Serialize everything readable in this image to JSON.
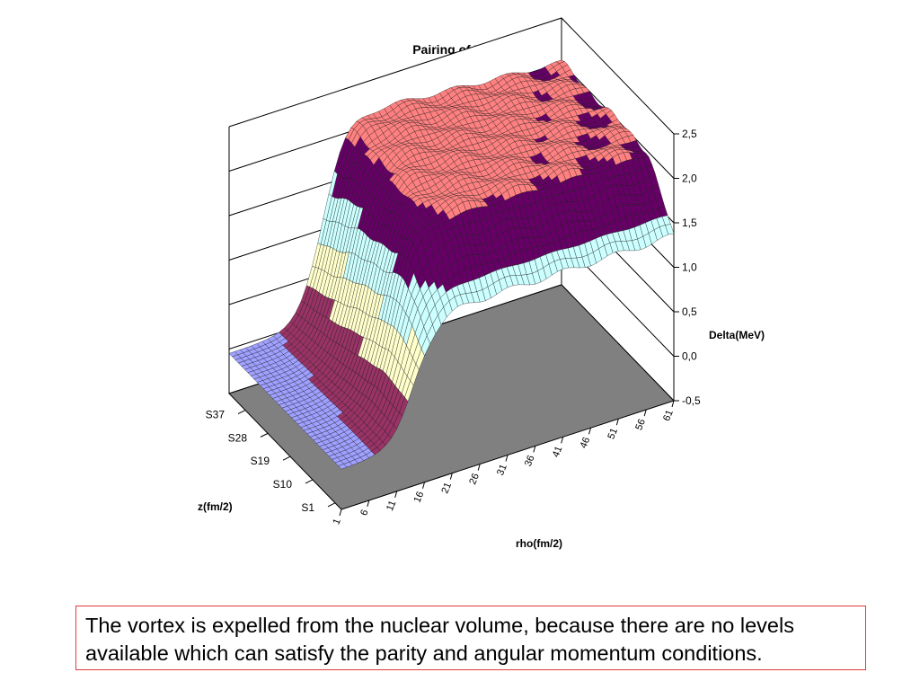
{
  "chart_data": {
    "type": "surface3d",
    "title": "Pairing of Pinned Vortex",
    "xlabel": "rho(fm/2)",
    "ylabel": "z(fm/2)",
    "zlabel": "Delta(MeV)",
    "x_ticks": [
      "1",
      "6",
      "11",
      "16",
      "21",
      "26",
      "31",
      "36",
      "41",
      "46",
      "51",
      "56",
      "61"
    ],
    "y_ticks": [
      "S1",
      "S10",
      "S19",
      "S28",
      "S37"
    ],
    "z_ticks": [
      "-0,5",
      "0,0",
      "0,5",
      "1,0",
      "1,5",
      "2,0",
      "2,5"
    ],
    "zlim": [
      -0.5,
      2.5
    ],
    "grid": true,
    "floor_color": "#808080",
    "color_bands": [
      {
        "range": [
          -0.5,
          0.0
        ],
        "color": "#9fa0ff"
      },
      {
        "range": [
          0.0,
          0.5
        ],
        "color": "#993366"
      },
      {
        "range": [
          0.5,
          1.0
        ],
        "color": "#ffffcc"
      },
      {
        "range": [
          1.0,
          1.5
        ],
        "color": "#ccffff"
      },
      {
        "range": [
          1.5,
          2.0
        ],
        "color": "#660066"
      },
      {
        "range": [
          2.0,
          2.5
        ],
        "color": "#ff8080"
      }
    ]
  },
  "caption": {
    "text": "The vortex is expelled from the nuclear volume, because there are no levels available which can satisfy the parity and angular momentum conditions."
  }
}
